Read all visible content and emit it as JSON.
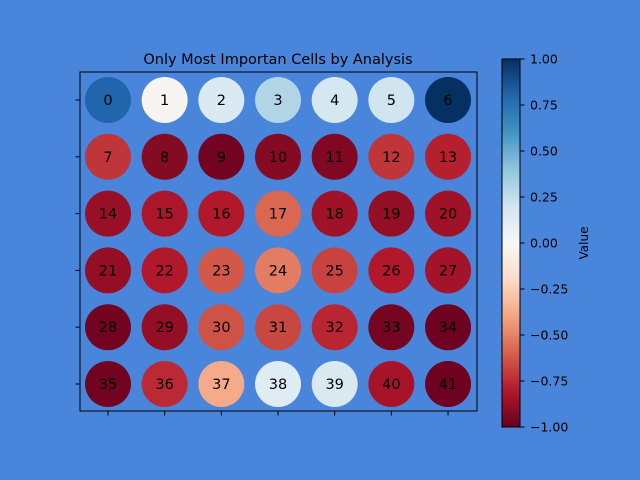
{
  "figure": {
    "background": "#4a85dc"
  },
  "chart_data": {
    "type": "heatmap",
    "title": "Only Most Importan Cells by Analysis",
    "rows": 6,
    "cols": 7,
    "grid": false,
    "labels": [
      [
        "0",
        "1",
        "2",
        "3",
        "4",
        "5",
        "6"
      ],
      [
        "7",
        "8",
        "9",
        "10",
        "11",
        "12",
        "13"
      ],
      [
        "14",
        "15",
        "16",
        "17",
        "18",
        "19",
        "20"
      ],
      [
        "21",
        "22",
        "23",
        "24",
        "25",
        "26",
        "27"
      ],
      [
        "28",
        "29",
        "30",
        "31",
        "32",
        "33",
        "34"
      ],
      [
        "35",
        "36",
        "37",
        "38",
        "39",
        "40",
        "41"
      ]
    ],
    "values": [
      [
        0.8,
        -0.02,
        0.15,
        0.3,
        0.18,
        0.2,
        1.0
      ],
      [
        -0.72,
        -0.92,
        -0.97,
        -0.92,
        -0.93,
        -0.72,
        -0.78
      ],
      [
        -0.87,
        -0.82,
        -0.8,
        -0.58,
        -0.85,
        -0.88,
        -0.85
      ],
      [
        -0.88,
        -0.8,
        -0.62,
        -0.52,
        -0.68,
        -0.8,
        -0.84
      ],
      [
        -0.97,
        -0.88,
        -0.64,
        -0.67,
        -0.76,
        -0.96,
        -0.98
      ],
      [
        -0.97,
        -0.75,
        -0.38,
        0.12,
        0.16,
        -0.83,
        -0.98
      ]
    ],
    "colorbar": {
      "label": "Value",
      "range": [
        -1.0,
        1.0
      ],
      "colormap": "RdBu",
      "ticks": [
        "−1.00",
        "−0.75",
        "−0.50",
        "−0.25",
        "0.00",
        "0.25",
        "0.50",
        "0.75",
        "1.00"
      ]
    }
  }
}
